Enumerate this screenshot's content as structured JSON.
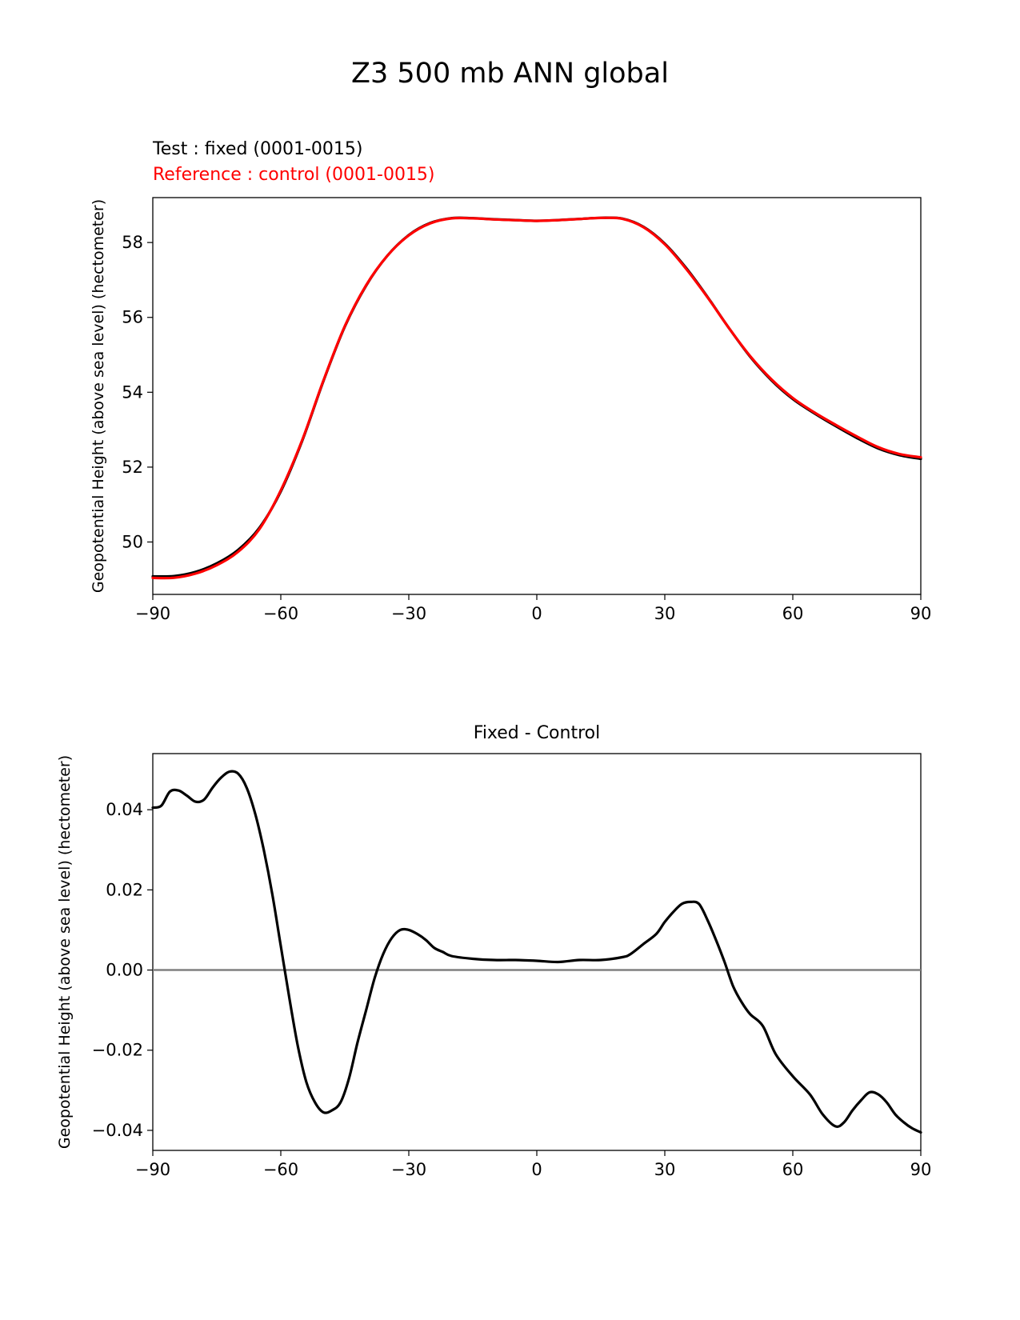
{
  "figure": {
    "title": "Z3 500 mb ANN global"
  },
  "chart_data": [
    {
      "type": "line",
      "legend_labels": {
        "test": "Test : fixed (0001-0015)",
        "reference": "Reference : control (0001-0015)"
      },
      "ylabel": "Geopotential Height (above sea level) (hectometer)",
      "xlabel": "",
      "xlim": [
        -90,
        90
      ],
      "ylim": [
        48.6,
        59.2
      ],
      "xticks": [
        -90,
        -60,
        -30,
        0,
        30,
        60,
        90
      ],
      "xtick_labels": [
        "−90",
        "−60",
        "−30",
        "0",
        "30",
        "60",
        "90"
      ],
      "yticks": [
        50,
        52,
        54,
        56,
        58
      ],
      "ytick_labels": [
        "50",
        "52",
        "54",
        "56",
        "58"
      ],
      "grid": false,
      "colors": {
        "test": "#000000",
        "reference": "#ff0000"
      },
      "series": [
        {
          "name": "Test : fixed (0001-0015)",
          "color": "#000000",
          "x": [
            -90,
            -85,
            -80,
            -75,
            -70,
            -65,
            -60,
            -55,
            -50,
            -45,
            -40,
            -35,
            -30,
            -25,
            -20,
            -15,
            -10,
            -5,
            0,
            5,
            10,
            15,
            20,
            25,
            30,
            35,
            40,
            45,
            50,
            55,
            60,
            65,
            70,
            75,
            80,
            85,
            90
          ],
          "values": [
            49.08,
            49.09,
            49.2,
            49.43,
            49.79,
            50.38,
            51.35,
            52.7,
            54.3,
            55.75,
            56.85,
            57.65,
            58.2,
            58.52,
            58.65,
            58.65,
            58.62,
            58.6,
            58.58,
            58.6,
            58.63,
            58.66,
            58.64,
            58.42,
            57.97,
            57.32,
            56.55,
            55.72,
            54.95,
            54.32,
            53.82,
            53.44,
            53.1,
            52.78,
            52.5,
            52.32,
            52.22
          ]
        },
        {
          "name": "Reference : control (0001-0015)",
          "color": "#ff0000",
          "x": [
            -90,
            -85,
            -80,
            -75,
            -70,
            -65,
            -60,
            -55,
            -50,
            -45,
            -40,
            -35,
            -30,
            -25,
            -20,
            -15,
            -10,
            -5,
            0,
            5,
            10,
            15,
            20,
            25,
            30,
            35,
            40,
            45,
            50,
            55,
            60,
            65,
            70,
            75,
            80,
            85,
            90
          ],
          "values": [
            49.04,
            49.045,
            49.155,
            49.38,
            49.74,
            50.345,
            51.38,
            52.72,
            54.315,
            55.765,
            56.86,
            57.648,
            58.192,
            58.512,
            58.645,
            58.647,
            58.617,
            58.598,
            58.578,
            58.597,
            58.628,
            58.657,
            58.635,
            58.41,
            57.953,
            57.295,
            56.54,
            55.72,
            54.966,
            54.345,
            53.846,
            53.464,
            53.132,
            52.82,
            52.534,
            52.35,
            52.262
          ]
        }
      ]
    },
    {
      "type": "line",
      "title": "Fixed - Control",
      "ylabel": "Geopotential Height (above sea level) (hectometer)",
      "xlabel": "",
      "xlim": [
        -90,
        90
      ],
      "ylim": [
        -0.045,
        0.054
      ],
      "xticks": [
        -90,
        -60,
        -30,
        0,
        30,
        60,
        90
      ],
      "xtick_labels": [
        "−90",
        "−60",
        "−30",
        "0",
        "30",
        "60",
        "90"
      ],
      "yticks": [
        -0.04,
        -0.02,
        0.0,
        0.02,
        0.04
      ],
      "ytick_labels": [
        "−0.04",
        "−0.02",
        "0.00",
        "0.02",
        "0.04"
      ],
      "grid": false,
      "zero_line": 0,
      "colors": {
        "line": "#000000",
        "zero_line": "#808080"
      },
      "series": [
        {
          "color": "#000000",
          "x": [
            -90,
            -88,
            -86,
            -84,
            -82,
            -80,
            -78,
            -76,
            -74,
            -72,
            -70,
            -68,
            -66,
            -64,
            -62,
            -60,
            -58,
            -56,
            -54,
            -52,
            -50,
            -48,
            -46,
            -44,
            -42,
            -40,
            -38,
            -36,
            -34,
            -32,
            -30,
            -28,
            -26,
            -24,
            -22,
            -20,
            -15,
            -10,
            -5,
            0,
            5,
            10,
            15,
            20,
            22,
            25,
            28,
            30,
            32,
            34,
            36,
            38,
            40,
            42,
            44,
            46,
            48,
            50,
            53,
            56,
            60,
            64,
            67,
            70,
            72,
            74,
            76,
            78,
            80,
            82,
            84,
            86,
            88,
            90
          ],
          "values": [
            0.0405,
            0.041,
            0.0445,
            0.0448,
            0.0435,
            0.042,
            0.0425,
            0.0455,
            0.048,
            0.0495,
            0.049,
            0.0455,
            0.039,
            0.03,
            0.019,
            0.006,
            -0.007,
            -0.019,
            -0.028,
            -0.033,
            -0.0355,
            -0.035,
            -0.033,
            -0.027,
            -0.018,
            -0.01,
            -0.002,
            0.004,
            0.008,
            0.01,
            0.01,
            0.009,
            0.0075,
            0.0055,
            0.0045,
            0.0035,
            0.0028,
            0.0025,
            0.0025,
            0.0023,
            0.002,
            0.0025,
            0.0025,
            0.0032,
            0.004,
            0.0065,
            0.009,
            0.012,
            0.0145,
            0.0165,
            0.017,
            0.0165,
            0.0125,
            0.0075,
            0.002,
            -0.004,
            -0.008,
            -0.011,
            -0.014,
            -0.021,
            -0.0265,
            -0.031,
            -0.036,
            -0.039,
            -0.038,
            -0.035,
            -0.0325,
            -0.0305,
            -0.031,
            -0.033,
            -0.036,
            -0.038,
            -0.0395,
            -0.0405
          ]
        }
      ]
    }
  ]
}
